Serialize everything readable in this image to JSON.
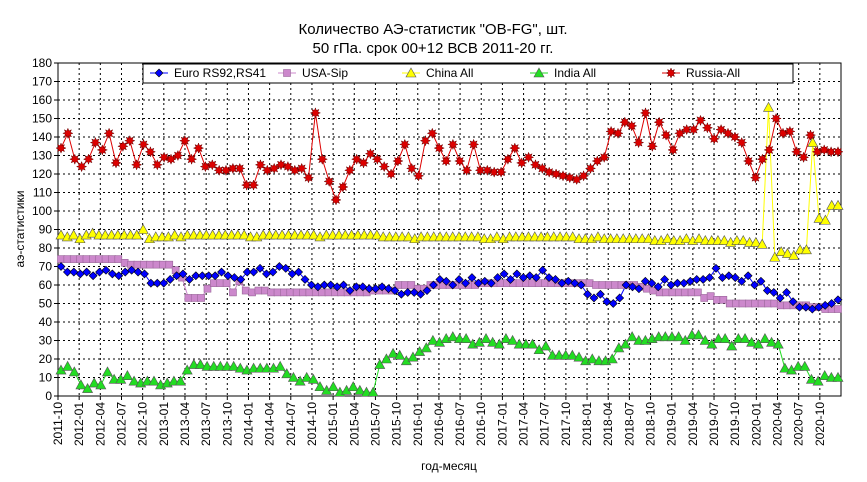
{
  "chart_data": {
    "type": "line",
    "title": "Количество АЭ-статистик \"OB-FG\", шт.",
    "subtitle": "50 гПа. срок 00+12 ВСВ 2011-20 гг.",
    "xlabel": "год-месяц",
    "ylabel": "аэ-статистики",
    "ylim": [
      0,
      180
    ],
    "yticks": [
      0,
      10,
      20,
      30,
      40,
      50,
      60,
      70,
      80,
      90,
      100,
      110,
      120,
      130,
      140,
      150,
      160,
      170,
      180
    ],
    "grid": true,
    "legend_position": "top",
    "x_tick_labels": [
      "2011-10",
      "2012-01",
      "2012-04",
      "2012-07",
      "2012-10",
      "2013-01",
      "2013-04",
      "2013-07",
      "2013-10",
      "2014-01",
      "2014-04",
      "2014-07",
      "2014-10",
      "2015-01",
      "2015-04",
      "2015-07",
      "2015-10",
      "2016-01",
      "2016-04",
      "2016-07",
      "2016-10",
      "2017-01",
      "2017-04",
      "2017-07",
      "2017-10",
      "2018-01",
      "2018-04",
      "2018-07",
      "2018-10",
      "2019-01",
      "2019-04",
      "2019-07",
      "2019-10",
      "2020-01",
      "2020-04",
      "2020-07",
      "2020-10"
    ],
    "x_start": "2011-10",
    "x_end": "2021-01",
    "series": [
      {
        "name": "Euro RS92,RS41",
        "color": "#0000ff",
        "marker": "diamond",
        "values": [
          70,
          67,
          67,
          66,
          67,
          65,
          67,
          68,
          66,
          65,
          67,
          68,
          67,
          66,
          61,
          61,
          61,
          63,
          65,
          66,
          63,
          65,
          65,
          65,
          65,
          67,
          65,
          64,
          63,
          67,
          67,
          69,
          66,
          67,
          70,
          69,
          66,
          67,
          63,
          60,
          59,
          60,
          60,
          59,
          60,
          57,
          59,
          59,
          58,
          58,
          59,
          58,
          57,
          55,
          56,
          56,
          55,
          57,
          60,
          63,
          62,
          60,
          63,
          61,
          64,
          61,
          62,
          61,
          64,
          66,
          63,
          66,
          64,
          65,
          64,
          68,
          64,
          63,
          61,
          62,
          61,
          60,
          55,
          53,
          55,
          51,
          50,
          53,
          60,
          59,
          58,
          62,
          61,
          59,
          63,
          60,
          61,
          61,
          62,
          63,
          63,
          64,
          69,
          64,
          65,
          64,
          62,
          65,
          60,
          62,
          57,
          56,
          53,
          56,
          51,
          48,
          48,
          47,
          48,
          49,
          50,
          52
        ]
      },
      {
        "name": "USA-Sip",
        "color": "#cc88cc",
        "marker": "square",
        "values": [
          74,
          74,
          74,
          74,
          74,
          74,
          74,
          74,
          74,
          74,
          72,
          71,
          71,
          71,
          71,
          71,
          71,
          71,
          68,
          64,
          53,
          53,
          53,
          58,
          61,
          61,
          61,
          56,
          62,
          57,
          56,
          57,
          57,
          56,
          56,
          56,
          56,
          56,
          56,
          56,
          56,
          56,
          56,
          56,
          56,
          56,
          56,
          56,
          56,
          57,
          57,
          57,
          57,
          60,
          60,
          60,
          58,
          58,
          60,
          60,
          60,
          60,
          60,
          60,
          60,
          60,
          61,
          61,
          61,
          61,
          61,
          61,
          61,
          61,
          61,
          61,
          61,
          61,
          61,
          61,
          61,
          61,
          61,
          61,
          60,
          60,
          60,
          60,
          60,
          60,
          60,
          59,
          58,
          57,
          56,
          56,
          56,
          56,
          56,
          56,
          56,
          53,
          54,
          52,
          52,
          50,
          50,
          50,
          50,
          50,
          50,
          50,
          50,
          49,
          49,
          49,
          49,
          49,
          48,
          48,
          47,
          47,
          47
        ]
      },
      {
        "name": "China All",
        "color": "#ffff00",
        "marker": "triangle",
        "values": [
          87,
          86,
          87,
          85,
          87,
          88,
          87,
          87,
          87,
          87,
          87,
          87,
          87,
          90,
          85,
          86,
          86,
          86,
          87,
          86,
          87,
          87,
          87,
          87,
          87,
          87,
          87,
          87,
          87,
          87,
          86,
          86,
          87,
          87,
          87,
          87,
          87,
          87,
          87,
          87,
          87,
          86,
          87,
          87,
          87,
          87,
          87,
          87,
          87,
          87,
          87,
          86,
          86,
          86,
          86,
          86,
          85,
          86,
          86,
          86,
          86,
          86,
          86,
          86,
          86,
          86,
          86,
          85,
          85,
          86,
          85,
          86,
          86,
          86,
          86,
          86,
          86,
          86,
          86,
          86,
          86,
          86,
          85,
          85,
          85,
          86,
          85,
          85,
          85,
          85,
          85,
          85,
          85,
          85,
          84,
          84,
          85,
          84,
          84,
          85,
          84,
          85,
          84,
          84,
          84,
          84,
          83,
          84,
          84,
          83,
          83,
          82,
          156,
          75,
          78,
          77,
          76,
          79,
          79,
          137,
          96,
          95,
          103,
          103
        ]
      },
      {
        "name": "India All",
        "color": "#22dd22",
        "marker": "triangle",
        "values": [
          14,
          16,
          13,
          6,
          4,
          7,
          6,
          13,
          9,
          9,
          11,
          8,
          7,
          8,
          8,
          6,
          7,
          8,
          8,
          14,
          17,
          17,
          16,
          16,
          16,
          16,
          16,
          15,
          14,
          15,
          15,
          15,
          15,
          16,
          12,
          10,
          8,
          10,
          9,
          5,
          3,
          5,
          2,
          3,
          5,
          3,
          2,
          2,
          17,
          20,
          23,
          22,
          19,
          21,
          24,
          26,
          30,
          29,
          31,
          32,
          31,
          31,
          28,
          29,
          31,
          29,
          28,
          31,
          30,
          28,
          28,
          28,
          25,
          27,
          22,
          22,
          22,
          22,
          21,
          19,
          20,
          19,
          19,
          20,
          26,
          28,
          32,
          30,
          30,
          31,
          32,
          32,
          32,
          32,
          30,
          33,
          33,
          30,
          28,
          31,
          31,
          27,
          31,
          31,
          29,
          28,
          31,
          29,
          28,
          15,
          14,
          16,
          16,
          9,
          8,
          11,
          10,
          10
        ]
      },
      {
        "name": "Russia-All",
        "color": "#dd0000",
        "marker": "star",
        "values": [
          134,
          142,
          128,
          124,
          128,
          137,
          133,
          142,
          126,
          135,
          138,
          125,
          136,
          132,
          125,
          129,
          128,
          130,
          138,
          128,
          134,
          124,
          125,
          122,
          122,
          123,
          123,
          114,
          114,
          125,
          122,
          123,
          125,
          124,
          122,
          123,
          118,
          153,
          128,
          116,
          106,
          113,
          122,
          128,
          126,
          131,
          128,
          124,
          120,
          127,
          136,
          123,
          119,
          138,
          142,
          134,
          127,
          136,
          127,
          122,
          136,
          122,
          122,
          121,
          121,
          128,
          134,
          126,
          129,
          125,
          123,
          121,
          120,
          119,
          118,
          117,
          119,
          123,
          127,
          129,
          143,
          142,
          148,
          146,
          137,
          153,
          135,
          148,
          141,
          133,
          142,
          144,
          144,
          149,
          145,
          139,
          144,
          142,
          140,
          137,
          127,
          118,
          128,
          133,
          150,
          142,
          143,
          132,
          129,
          141,
          132,
          133,
          132,
          132
        ]
      }
    ]
  }
}
